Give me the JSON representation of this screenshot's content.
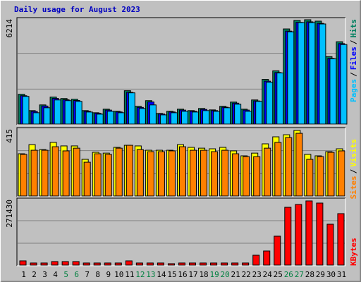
{
  "title": "Daily usage for August 2023",
  "days": [
    "1",
    "2",
    "3",
    "4",
    "5",
    "6",
    "7",
    "8",
    "9",
    "10",
    "11",
    "12",
    "13",
    "14",
    "15",
    "16",
    "17",
    "18",
    "19",
    "20",
    "21",
    "22",
    "23",
    "24",
    "25",
    "26",
    "27",
    "28",
    "29",
    "30",
    "31"
  ],
  "weekend": [
    false,
    false,
    false,
    false,
    true,
    true,
    false,
    false,
    false,
    false,
    false,
    true,
    true,
    false,
    false,
    false,
    false,
    false,
    true,
    true,
    false,
    false,
    false,
    false,
    false,
    true,
    true,
    false,
    false,
    false,
    false
  ],
  "weekend_color": "#008040",
  "separator": "/",
  "chart_data": [
    {
      "type": "bar",
      "ylim": [
        0,
        6214
      ],
      "grid": true,
      "series": [
        {
          "name": "Hits",
          "color": "#008060",
          "values": [
            1806,
            840,
            1176,
            1638,
            1554,
            1512,
            840,
            714,
            924,
            798,
            2016,
            1092,
            1428,
            672,
            798,
            924,
            840,
            966,
            882,
            1092,
            1344,
            924,
            1470,
            2688,
            3192,
            5670,
            6174,
            6214,
            6132,
            4032,
            4914
          ]
        },
        {
          "name": "Files",
          "color": "#0000ff",
          "values": [
            1720,
            790,
            1110,
            1560,
            1480,
            1440,
            800,
            680,
            870,
            760,
            1920,
            1030,
            1350,
            640,
            760,
            870,
            800,
            910,
            840,
            1040,
            1280,
            870,
            1410,
            2580,
            3090,
            5540,
            6060,
            6090,
            6000,
            3930,
            4800
          ]
        },
        {
          "name": "Pages",
          "color": "#00c0ff",
          "values": [
            1680,
            714,
            1008,
            1470,
            1428,
            1386,
            756,
            630,
            798,
            714,
            1890,
            966,
            1176,
            588,
            714,
            798,
            756,
            840,
            798,
            1008,
            1218,
            798,
            1386,
            2520,
            3066,
            5502,
            6048,
            6048,
            5964,
            3906,
            4746
          ]
        }
      ]
    },
    {
      "type": "bar",
      "ylim": [
        0,
        415
      ],
      "grid": true,
      "series": [
        {
          "name": "Visits",
          "color": "#ffff00",
          "values": [
            269,
            326,
            295,
            340,
            318,
            318,
            234,
            278,
            273,
            309,
            322,
            318,
            291,
            291,
            291,
            326,
            309,
            304,
            300,
            309,
            287,
            256,
            273,
            331,
            375,
            388,
            415,
            265,
            256,
            282,
            300
          ]
        },
        {
          "name": "Sites",
          "color": "#ff8000",
          "values": [
            265,
            291,
            291,
            313,
            287,
            304,
            216,
            269,
            265,
            304,
            322,
            295,
            282,
            282,
            287,
            313,
            291,
            291,
            282,
            291,
            269,
            251,
            251,
            304,
            340,
            370,
            397,
            234,
            251,
            278,
            287
          ]
        }
      ]
    },
    {
      "type": "bar",
      "ylim": [
        0,
        271430
      ],
      "grid": true,
      "series": [
        {
          "name": "KBytes",
          "color": "#ff0000",
          "values": [
            20650,
            11800,
            11800,
            17700,
            17700,
            17700,
            11800,
            11800,
            11800,
            11800,
            20650,
            11800,
            11800,
            11800,
            8850,
            11800,
            11800,
            11800,
            11800,
            11800,
            11800,
            11800,
            44250,
            61950,
            123900,
            244850,
            256650,
            271430,
            262550,
            174050,
            218300
          ]
        }
      ]
    }
  ]
}
